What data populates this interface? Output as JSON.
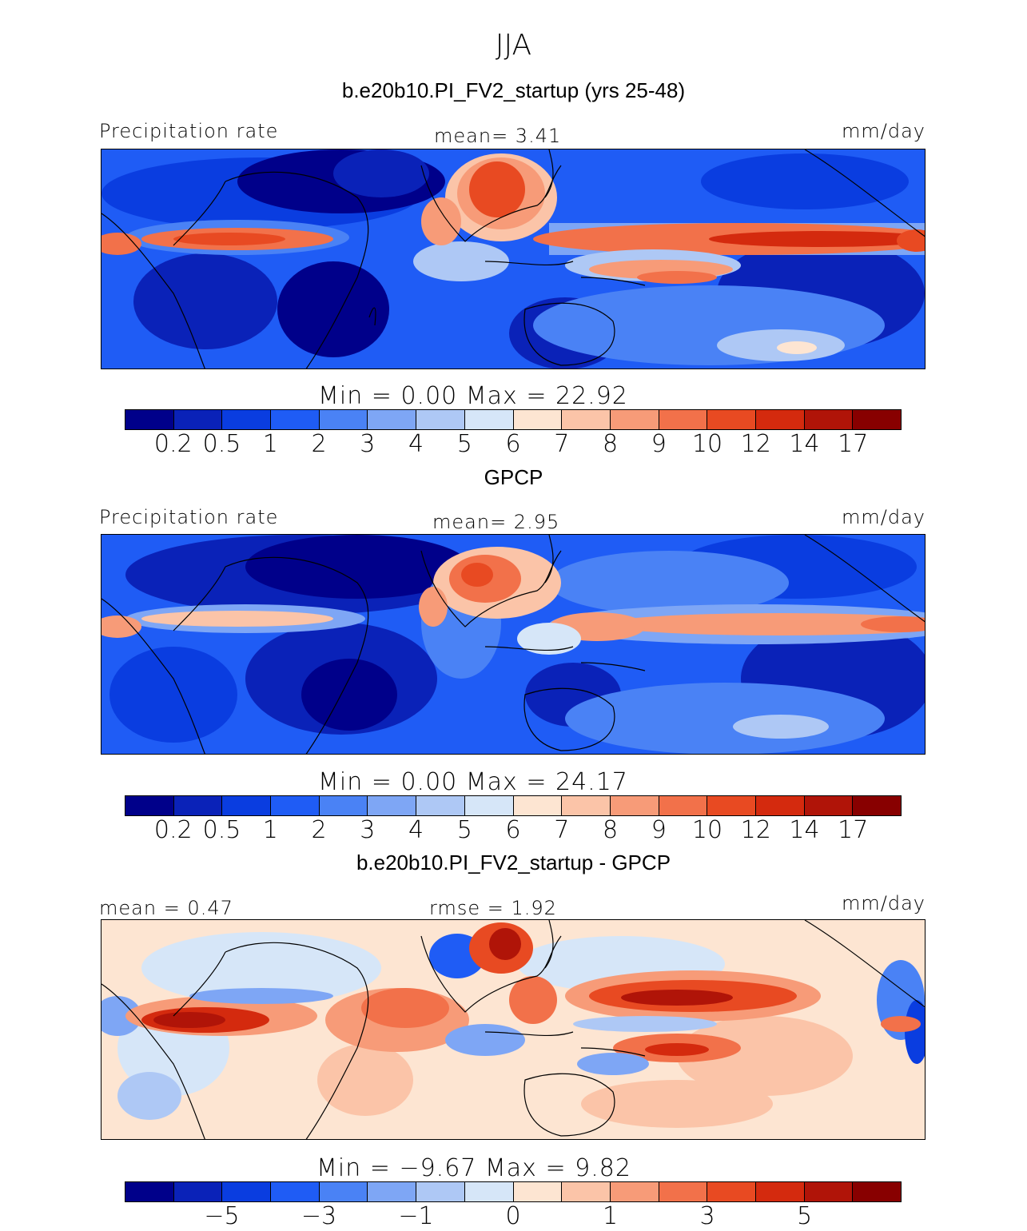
{
  "figure": {
    "season": "JJA",
    "units": "mm/day"
  },
  "panels": [
    {
      "id": "model",
      "title": "b.e20b10.PI_FV2_startup (yrs 25-48)",
      "left_label": "Precipitation rate",
      "center_label": "mean=   3.41",
      "right_label": "mm/day",
      "min_max": "Min =    0.00  Max =   22.92",
      "colorbar_ticks": [
        "0.2",
        "0.5",
        "1",
        "2",
        "3",
        "4",
        "5",
        "6",
        "7",
        "8",
        "9",
        "10",
        "12",
        "14",
        "17"
      ],
      "mean": 3.41,
      "min": 0.0,
      "max": 22.92
    },
    {
      "id": "obs",
      "title": "GPCP",
      "left_label": "Precipitation rate",
      "center_label": "mean=   2.95",
      "right_label": "mm/day",
      "min_max": "Min =    0.00  Max =   24.17",
      "colorbar_ticks": [
        "0.2",
        "0.5",
        "1",
        "2",
        "3",
        "4",
        "5",
        "6",
        "7",
        "8",
        "9",
        "10",
        "12",
        "14",
        "17"
      ],
      "mean": 2.95,
      "min": 0.0,
      "max": 24.17
    },
    {
      "id": "diff",
      "title": "b.e20b10.PI_FV2_startup - GPCP",
      "left_label": "mean =   0.47",
      "center_label": "rmse =   1.92",
      "right_label": "mm/day",
      "min_max": "Min =  −9.67  Max =    9.82",
      "colorbar_ticks": [
        "−5",
        "−3",
        "−1",
        "0",
        "1",
        "3",
        "5"
      ],
      "mean": 0.47,
      "rmse": 1.92,
      "min": -9.67,
      "max": 9.82
    }
  ],
  "colors": {
    "precip_scale": [
      "#00008a",
      "#0a22b8",
      "#0a3de0",
      "#1f5cf5",
      "#4a82f5",
      "#7ea6f5",
      "#aec8f5",
      "#d6e6f8",
      "#fde5d2",
      "#fbc4a8",
      "#f79b78",
      "#f2714a",
      "#e84a22",
      "#d42a0e",
      "#b01408",
      "#880000"
    ],
    "diff_scale": [
      "#00008a",
      "#0a22b8",
      "#0a3de0",
      "#1f5cf5",
      "#4a82f5",
      "#7ea6f5",
      "#aec8f5",
      "#d6e6f8",
      "#fde5d2",
      "#fbc4a8",
      "#f79b78",
      "#f2714a",
      "#e84a22",
      "#d42a0e",
      "#b01408",
      "#880000"
    ]
  }
}
